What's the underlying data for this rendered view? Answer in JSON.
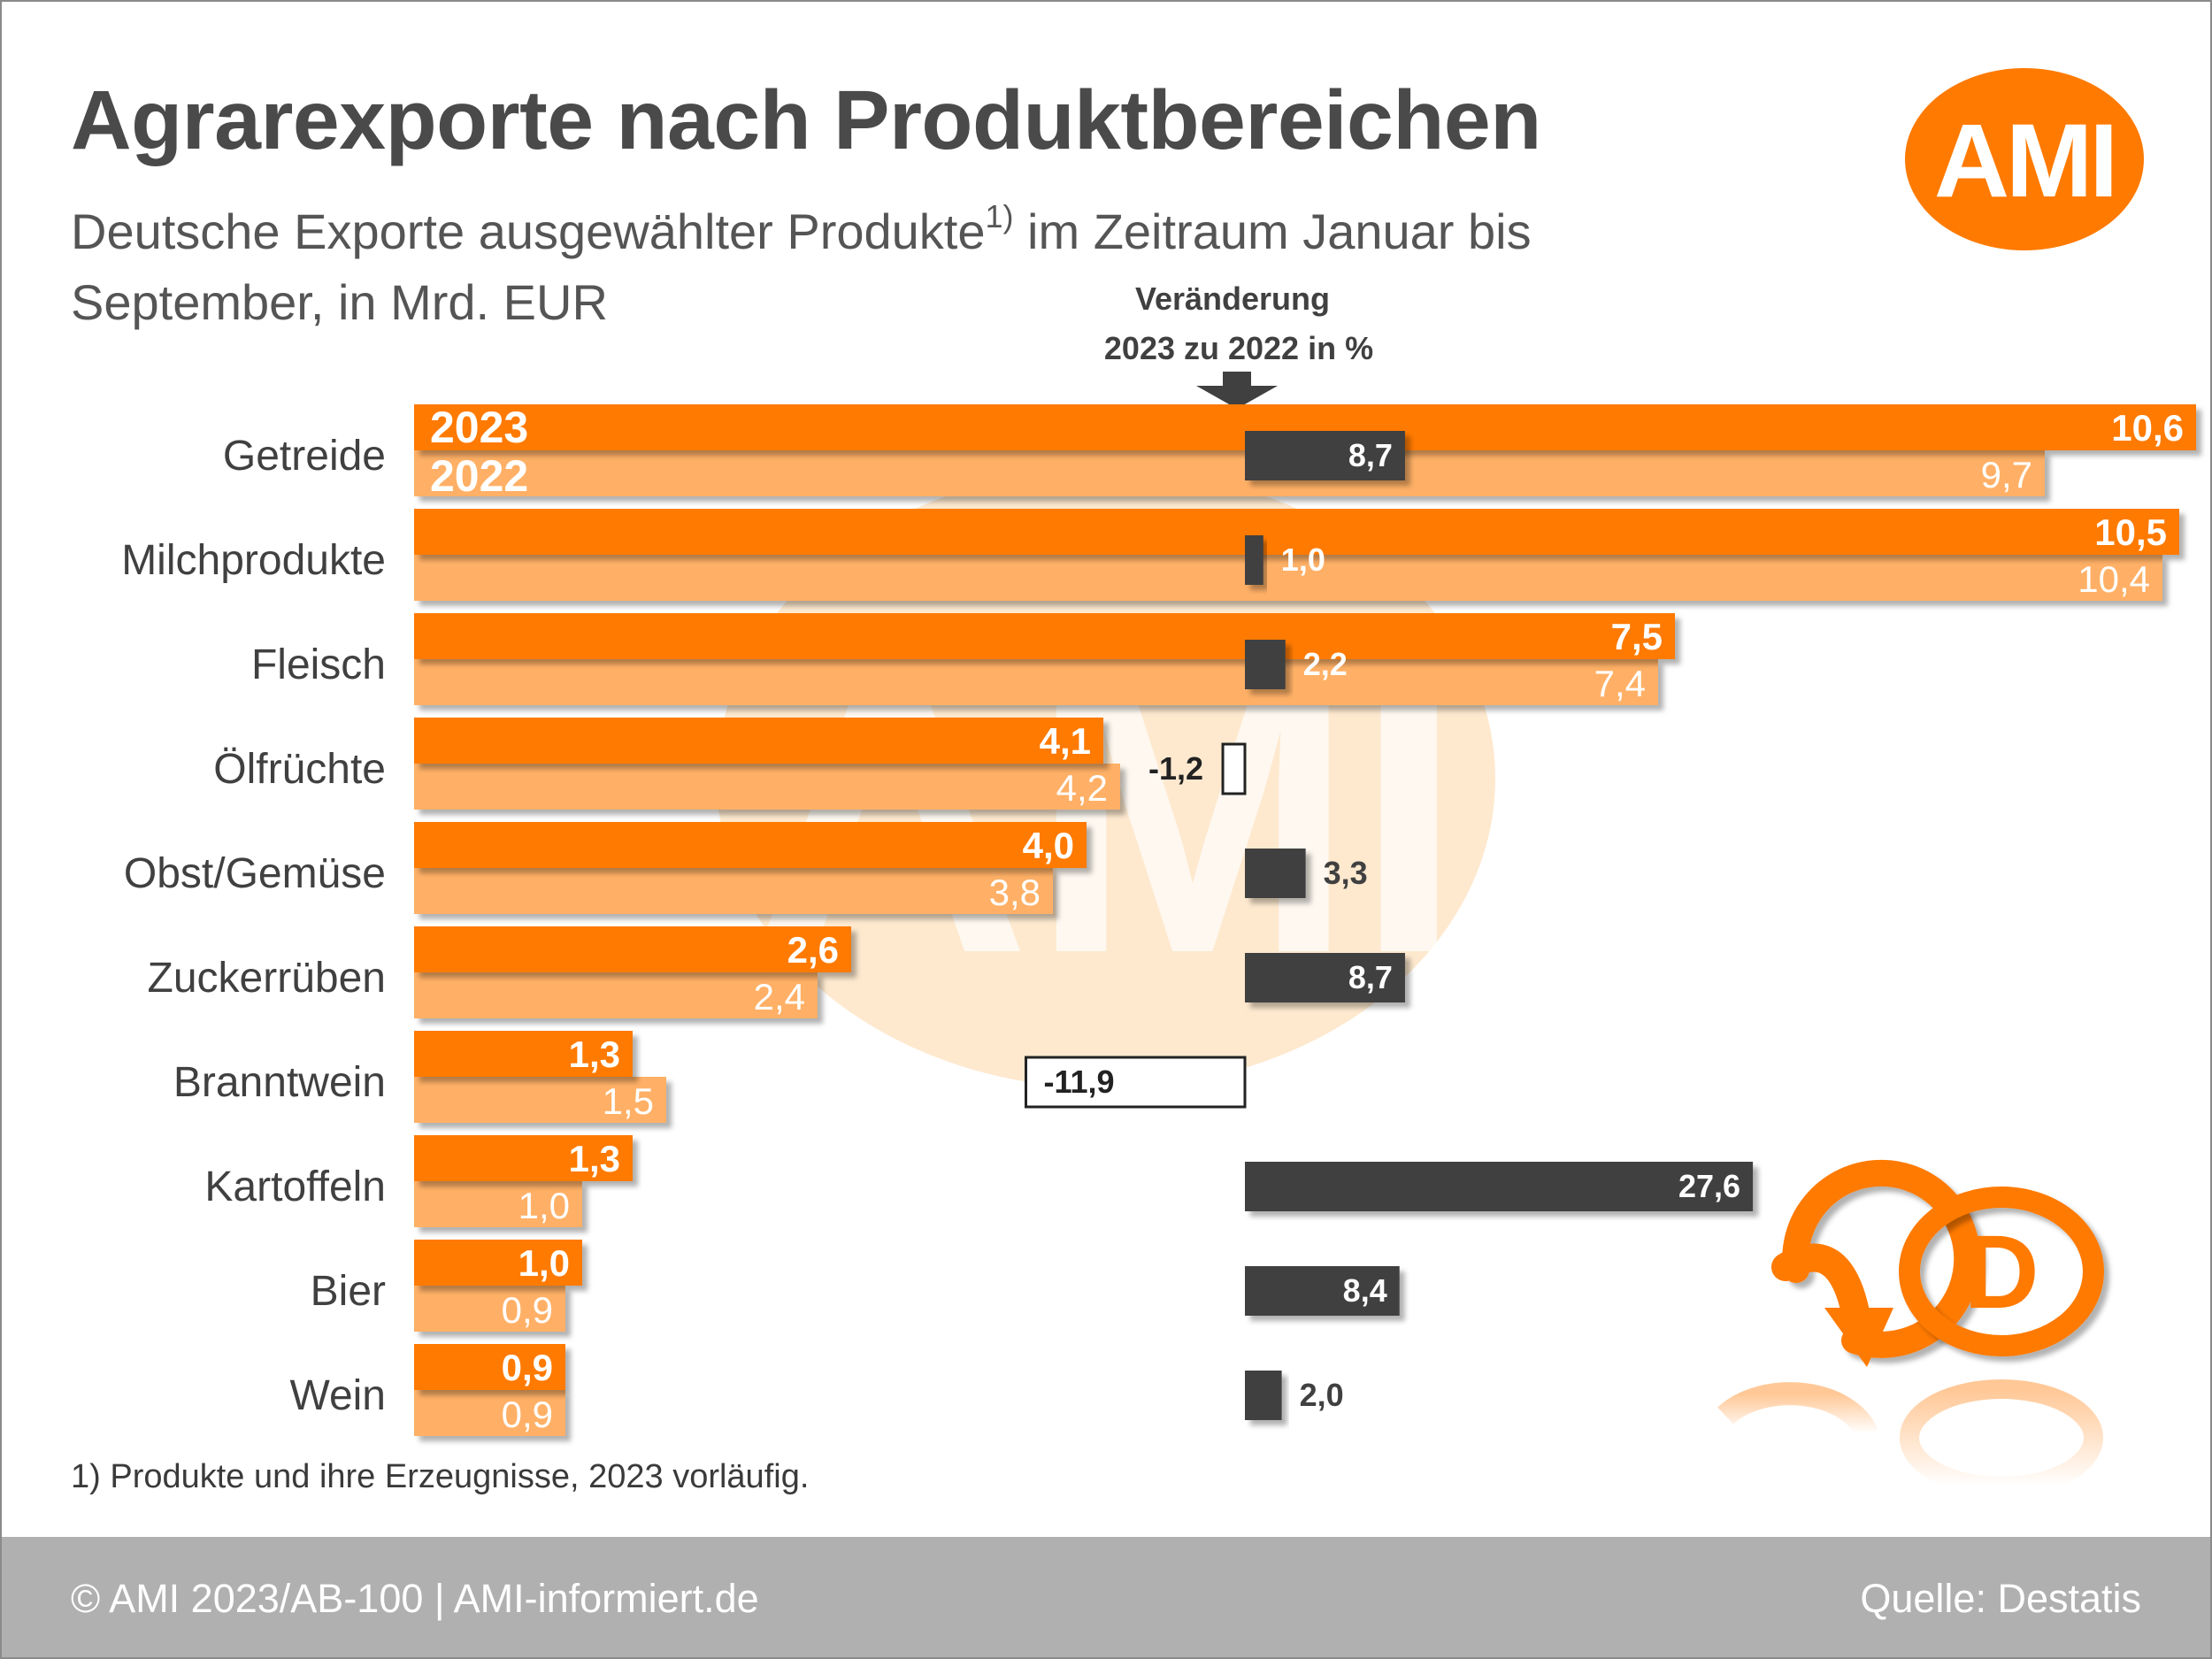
{
  "title": "Agrarexporte nach Produktbereichen",
  "subtitle_main": "Deutsche Exporte ausgewählter Produkte",
  "subtitle_sup": "1)",
  "subtitle_rest": " im Zeitraum Januar bis September, in Mrd. EUR",
  "change_header_line1": "Veränderung",
  "change_header_line2": "2023 zu 2022 in %",
  "logo_text": "AMI",
  "watermark_text": "AMI",
  "footnote": "1) Produkte und ihre Erzeugnisse, 2023 vorläufig.",
  "footer_left": "© AMI 2023/AB-100 | AMI-informiert.de",
  "footer_right": "Quelle: Destatis",
  "colors": {
    "orange_dark": "#ff7a00",
    "orange_light": "#ffb066",
    "change_bar": "#404040",
    "text_gray": "#4a4a4a",
    "watermark": "#fde1bf"
  },
  "icons": {
    "logo": "ami-logo-icon",
    "arrow": "down-arrow-icon",
    "q_icon": "q-circle-arrow-icon",
    "d_icon": "d-circle-icon"
  },
  "chart_data": {
    "type": "bar",
    "orientation": "horizontal",
    "categories": [
      "Getreide",
      "Milchprodukte",
      "Fleisch",
      "Ölfrüchte",
      "Obst/Gemüse",
      "Zuckerrüben",
      "Branntwein",
      "Kartoffeln",
      "Bier",
      "Wein"
    ],
    "series": [
      {
        "name": "2023",
        "values": [
          10.6,
          10.5,
          7.5,
          4.1,
          4.0,
          2.6,
          1.3,
          1.3,
          1.0,
          0.9
        ],
        "labels": [
          "10,6",
          "10,5",
          "7,5",
          "4,1",
          "4,0",
          "2,6",
          "1,3",
          "1,3",
          "1,0",
          "0,9"
        ]
      },
      {
        "name": "2022",
        "values": [
          9.7,
          10.4,
          7.4,
          4.2,
          3.8,
          2.4,
          1.5,
          1.0,
          0.9,
          0.9
        ],
        "labels": [
          "9,7",
          "10,4",
          "7,4",
          "4,2",
          "3,8",
          "2,4",
          "1,5",
          "1,0",
          "0,9",
          "0,9"
        ]
      }
    ],
    "change": {
      "name": "Veränderung 2023 zu 2022 in %",
      "values": [
        8.7,
        1.0,
        2.2,
        -1.2,
        3.3,
        8.7,
        -11.9,
        27.6,
        8.4,
        2.0
      ],
      "labels": [
        "8,7",
        "1,0",
        "2,2",
        "-1,2",
        "3,3",
        "8,7",
        "-11,9",
        "27,6",
        "8,4",
        "2,0"
      ]
    },
    "xlim": [
      0,
      11
    ],
    "unit": "Mrd. EUR",
    "legend": "inside first bar group, left"
  }
}
